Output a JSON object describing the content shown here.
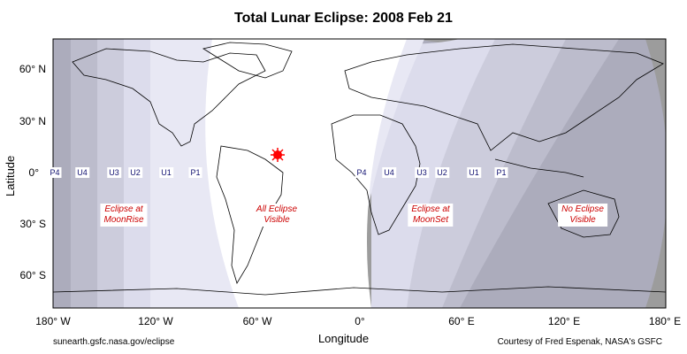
{
  "title": "Total Lunar Eclipse: 2008 Feb 21",
  "axes": {
    "xlabel": "Longitude",
    "ylabel": "Latitude",
    "xticks": [
      "180° W",
      "120° W",
      "60° W",
      "0°",
      "60° E",
      "120° E",
      "180° E"
    ],
    "yticks": [
      "60° N",
      "30° N",
      "0°",
      "30° S",
      "60° S"
    ]
  },
  "contacts": {
    "moonrise_side": [
      "P4",
      "U4",
      "U3",
      "U2",
      "U1",
      "P1"
    ],
    "moonset_side": [
      "P4",
      "U4",
      "U3",
      "U2",
      "U1",
      "P1"
    ]
  },
  "regions": {
    "moonrise": [
      "Eclipse at",
      "MoonRise"
    ],
    "all_visible": [
      "All Eclipse",
      "Visible"
    ],
    "moonset": [
      "Eclipse at",
      "MoonSet"
    ],
    "none_visible": [
      "No Eclipse",
      "Visible"
    ]
  },
  "footer": {
    "left": "sunearth.gsfc.nasa.gov/eclipse",
    "right": "Courtesy of Fred Espenak, NASA's GSFC"
  },
  "colors": {
    "dark": "#9c9c9c",
    "band1": "#acacbc",
    "band2": "#bcbccc",
    "band3": "#ccccdc",
    "band4": "#dcdcec",
    "band5": "#e8e8f4",
    "visible": "#ffffff",
    "marker": "#ff0000"
  }
}
